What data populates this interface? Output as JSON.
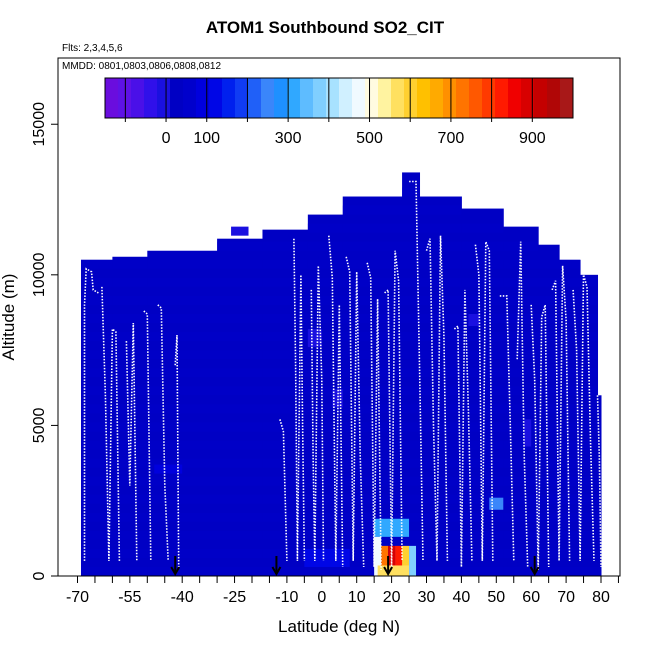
{
  "chart_data": {
    "type": "heatmap",
    "title": "ATOM1 Southbound SO2_CIT",
    "notes": {
      "flights": "Flts: 2,3,4,5,6",
      "dates": "MMDD: 0801,0803,0806,0808,0812"
    },
    "xlabel": "Latitude (deg N)",
    "ylabel": "Altitude (m)",
    "xlim": [
      -70,
      80
    ],
    "ylim": [
      0,
      17000
    ],
    "x_ticks": [
      -70,
      -65,
      -60,
      -55,
      -50,
      -45,
      -40,
      -35,
      -30,
      -25,
      -20,
      -15,
      -10,
      -5,
      0,
      5,
      10,
      15,
      20,
      25,
      30,
      35,
      40,
      45,
      50,
      55,
      60,
      65,
      70,
      75,
      80,
      85
    ],
    "x_tick_labels": [
      "-70",
      "-55",
      "-40",
      "-25",
      "-10",
      "0",
      "10",
      "20",
      "30",
      "40",
      "50",
      "60",
      "70",
      "80"
    ],
    "x_label_values": [
      -70,
      -55,
      -40,
      -25,
      -10,
      0,
      10,
      20,
      30,
      40,
      50,
      60,
      70,
      80
    ],
    "y_tick_values": [
      0,
      5000,
      10000,
      15000
    ],
    "y_tick_labels": [
      "0",
      "5000",
      "10000",
      "15000"
    ],
    "colorbar": {
      "range": [
        -150,
        1000
      ],
      "tick_values": [
        0,
        100,
        300,
        500,
        700,
        900
      ],
      "tick_labels": [
        "0",
        "100",
        "300",
        "500",
        "700",
        "900"
      ],
      "colors": [
        "#6a0dde",
        "#5e12e6",
        "#4a10e8",
        "#3010ea",
        "#1a10e0",
        "#0000c4",
        "#0000cc",
        "#0000dd",
        "#0006e6",
        "#0020ee",
        "#103cf4",
        "#2060f8",
        "#3a86fa",
        "#1e90ff",
        "#30a8ff",
        "#5ebcff",
        "#80cfff",
        "#a8e2ff",
        "#d0f0ff",
        "#f0faff",
        "#fffbe0",
        "#fff3a0",
        "#ffe060",
        "#ffd030",
        "#ffc000",
        "#ffaa00",
        "#ff9000",
        "#ff7400",
        "#ff5800",
        "#ff3a00",
        "#ff1a00",
        "#f00000",
        "#d80000",
        "#c40000",
        "#b00606",
        "#a81818"
      ]
    },
    "envelope": [
      {
        "lat": [
          -69,
          -60
        ],
        "top": 10500
      },
      {
        "lat": [
          -60,
          -50
        ],
        "top": 10600
      },
      {
        "lat": [
          -50,
          -30
        ],
        "top": 10800
      },
      {
        "lat": [
          -30,
          -17
        ],
        "top": 11200
      },
      {
        "lat": [
          -17,
          -4
        ],
        "top": 11500
      },
      {
        "lat": [
          -4,
          6
        ],
        "top": 12000
      },
      {
        "lat": [
          6,
          23
        ],
        "top": 12600
      },
      {
        "lat": [
          23,
          28
        ],
        "top": 13400
      },
      {
        "lat": [
          28,
          40
        ],
        "top": 12600
      },
      {
        "lat": [
          40,
          52
        ],
        "top": 12200
      },
      {
        "lat": [
          52,
          62
        ],
        "top": 11600
      },
      {
        "lat": [
          62,
          68
        ],
        "top": 11000
      },
      {
        "lat": [
          68,
          74
        ],
        "top": 10500
      },
      {
        "lat": [
          74,
          79
        ],
        "top": 10000
      },
      {
        "lat": [
          79,
          80
        ],
        "top": 6000
      }
    ],
    "background_value": 20,
    "hotspots": [
      {
        "lat": [
          15,
          25
        ],
        "alt": [
          1300,
          1900
        ],
        "value": 300
      },
      {
        "lat": [
          15,
          17
        ],
        "alt": [
          0,
          1300
        ],
        "value": 460
      },
      {
        "lat": [
          17,
          19
        ],
        "alt": [
          0,
          1000
        ],
        "value": 720
      },
      {
        "lat": [
          19,
          21
        ],
        "alt": [
          0,
          1000
        ],
        "value": 900
      },
      {
        "lat": [
          21,
          23
        ],
        "alt": [
          0,
          1000
        ],
        "value": 830
      },
      {
        "lat": [
          23,
          25
        ],
        "alt": [
          0,
          1000
        ],
        "value": 600
      },
      {
        "lat": [
          25,
          27
        ],
        "alt": [
          0,
          1000
        ],
        "value": 380
      },
      {
        "lat": [
          16,
          25
        ],
        "alt": [
          0,
          350
        ],
        "value": 560
      },
      {
        "lat": [
          48,
          52
        ],
        "alt": [
          2200,
          2600
        ],
        "value": 260
      },
      {
        "lat": [
          -5,
          8
        ],
        "alt": [
          300,
          900
        ],
        "value": 120
      },
      {
        "lat": [
          -48,
          -40
        ],
        "alt": [
          3400,
          3700
        ],
        "value": 80
      },
      {
        "lat": [
          -26,
          -21
        ],
        "alt": [
          11300,
          11600
        ],
        "value": 0
      },
      {
        "lat": [
          -4,
          0
        ],
        "alt": [
          7600,
          8200
        ],
        "value": 0
      },
      {
        "lat": [
          3,
          6
        ],
        "alt": [
          5600,
          6200
        ],
        "value": 0
      },
      {
        "lat": [
          58,
          60
        ],
        "alt": [
          4300,
          5200
        ],
        "value": 0
      },
      {
        "lat": [
          42,
          45
        ],
        "alt": [
          8300,
          8700
        ],
        "value": 0
      }
    ],
    "profiles": [
      {
        "points": [
          [
            -68,
            500
          ],
          [
            -68,
            9000
          ],
          [
            -67.5,
            10200
          ],
          [
            -66,
            10100
          ],
          [
            -65.5,
            9500
          ],
          [
            -64,
            9400
          ]
        ]
      },
      {
        "points": [
          [
            -63,
            9600
          ],
          [
            -62,
            6000
          ],
          [
            -61,
            500
          ],
          [
            -60,
            8200
          ],
          [
            -59,
            8100
          ],
          [
            -58,
            500
          ]
        ]
      },
      {
        "points": [
          [
            -56,
            7800
          ],
          [
            -55,
            3000
          ],
          [
            -54,
            8400
          ],
          [
            -53,
            500
          ]
        ]
      },
      {
        "points": [
          [
            -51,
            8800
          ],
          [
            -50,
            8700
          ],
          [
            -49,
            500
          ]
        ]
      },
      {
        "points": [
          [
            -47,
            9000
          ],
          [
            -46,
            8900
          ],
          [
            -45,
            3000
          ],
          [
            -44,
            500
          ]
        ]
      },
      {
        "points": [
          [
            -42,
            7000
          ],
          [
            -41.5,
            8000
          ],
          [
            -41,
            300
          ]
        ]
      },
      {
        "points": [
          [
            -12,
            5200
          ],
          [
            -11,
            4800
          ],
          [
            -10,
            500
          ]
        ]
      },
      {
        "points": [
          [
            -8,
            11200
          ],
          [
            -7.5,
            7000
          ],
          [
            -7,
            500
          ],
          [
            -6,
            10000
          ],
          [
            -5.5,
            5000
          ],
          [
            -5,
            500
          ]
        ]
      },
      {
        "points": [
          [
            -3,
            9500
          ],
          [
            -2.5,
            4000
          ],
          [
            -2,
            500
          ],
          [
            -1,
            10300
          ],
          [
            0,
            6500
          ],
          [
            0.5,
            500
          ]
        ]
      },
      {
        "points": [
          [
            2,
            11300
          ],
          [
            3,
            9900
          ],
          [
            4,
            500
          ],
          [
            5,
            9000
          ],
          [
            6,
            300
          ]
        ]
      },
      {
        "points": [
          [
            7,
            10600
          ],
          [
            8,
            10100
          ],
          [
            9,
            500
          ],
          [
            10,
            10100
          ],
          [
            11,
            4000
          ],
          [
            12,
            300
          ]
        ]
      },
      {
        "points": [
          [
            13,
            10400
          ],
          [
            14,
            9900
          ],
          [
            15,
            300
          ],
          [
            16,
            9200
          ],
          [
            17,
            200
          ]
        ]
      },
      {
        "points": [
          [
            18,
            9400
          ],
          [
            19,
            9500
          ],
          [
            20,
            300
          ],
          [
            21,
            10800
          ],
          [
            22,
            9800
          ],
          [
            23,
            500
          ]
        ]
      },
      {
        "points": [
          [
            25,
            13100
          ],
          [
            27,
            13100
          ],
          [
            28,
            7000
          ],
          [
            29,
            500
          ]
        ]
      },
      {
        "points": [
          [
            30,
            10800
          ],
          [
            31,
            11200
          ],
          [
            32,
            5000
          ],
          [
            33,
            500
          ],
          [
            34,
            11300
          ],
          [
            35,
            8000
          ],
          [
            36,
            500
          ]
        ]
      },
      {
        "points": [
          [
            38,
            8200
          ],
          [
            39,
            8300
          ],
          [
            40,
            300
          ],
          [
            41,
            9500
          ],
          [
            42,
            5500
          ],
          [
            43,
            500
          ]
        ]
      },
      {
        "points": [
          [
            44,
            11000
          ],
          [
            45,
            10000
          ],
          [
            46,
            500
          ],
          [
            47,
            11100
          ],
          [
            48,
            10800
          ],
          [
            49,
            500
          ]
        ]
      },
      {
        "points": [
          [
            51,
            9300
          ],
          [
            53,
            9300
          ],
          [
            54,
            5000
          ],
          [
            55,
            500
          ]
        ]
      },
      {
        "points": [
          [
            56,
            7200
          ],
          [
            57,
            11100
          ],
          [
            58,
            4000
          ],
          [
            59,
            300
          ]
        ]
      },
      {
        "points": [
          [
            60,
            9000
          ],
          [
            61,
            6500
          ],
          [
            62,
            200
          ],
          [
            63,
            8600
          ],
          [
            64,
            9000
          ],
          [
            65,
            300
          ]
        ]
      },
      {
        "points": [
          [
            66,
            9500
          ],
          [
            67,
            9800
          ],
          [
            68,
            500
          ],
          [
            69,
            10300
          ],
          [
            70,
            8500
          ],
          [
            71,
            500
          ]
        ]
      },
      {
        "points": [
          [
            72,
            9500
          ],
          [
            73,
            7500
          ],
          [
            74,
            500
          ],
          [
            75,
            10000
          ],
          [
            76,
            9600
          ],
          [
            77,
            4500
          ],
          [
            78,
            500
          ]
        ]
      },
      {
        "points": [
          [
            79,
            6000
          ],
          [
            79.5,
            4000
          ],
          [
            80,
            300
          ]
        ]
      }
    ],
    "arrows": [
      -42,
      -13,
      19,
      61
    ]
  }
}
